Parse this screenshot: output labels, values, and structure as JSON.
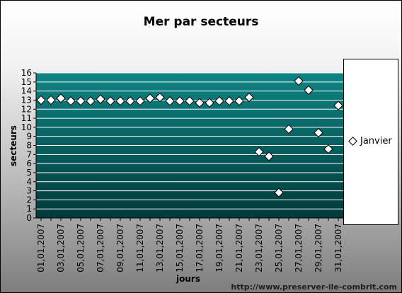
{
  "chart_data": {
    "type": "scatter",
    "title": "Mer par secteurs",
    "xlabel": "jours",
    "ylabel": "secteurs",
    "ylim": [
      0,
      16
    ],
    "y_ticks": [
      "0",
      "1",
      "2",
      "3",
      "4",
      "5",
      "6",
      "7",
      "8",
      "9",
      "10",
      "11",
      "12",
      "13",
      "14",
      "15",
      "16"
    ],
    "x_tick_labels": [
      "01,01,2007",
      "03,01,2007",
      "05,01,2007",
      "07,01,2007",
      "09,01,2007",
      "11,01,2007",
      "13,01,2007",
      "15,01,2007",
      "17,01,2007",
      "19,01,2007",
      "21,01,2007",
      "23,01,2007",
      "25,01,2007",
      "27,01,2007",
      "29,01,2007",
      "31,01,2007"
    ],
    "x": [
      "01,01,2007",
      "02,01,2007",
      "03,01,2007",
      "04,01,2007",
      "05,01,2007",
      "06,01,2007",
      "07,01,2007",
      "08,01,2007",
      "09,01,2007",
      "10,01,2007",
      "11,01,2007",
      "12,01,2007",
      "13,01,2007",
      "14,01,2007",
      "15,01,2007",
      "16,01,2007",
      "17,01,2007",
      "18,01,2007",
      "19,01,2007",
      "20,01,2007",
      "21,01,2007",
      "22,01,2007",
      "23,01,2007",
      "24,01,2007",
      "25,01,2007",
      "26,01,2007",
      "27,01,2007",
      "28,01,2007",
      "29,01,2007",
      "30,01,2007",
      "31,01,2007"
    ],
    "series": [
      {
        "name": "Janvier",
        "values": [
          13.0,
          13.0,
          13.2,
          12.9,
          12.9,
          12.9,
          13.1,
          12.9,
          12.9,
          12.9,
          12.9,
          13.2,
          13.3,
          12.9,
          12.9,
          12.9,
          12.7,
          12.7,
          12.9,
          12.9,
          12.9,
          13.3,
          7.3,
          6.8,
          2.8,
          9.8,
          15.1,
          14.1,
          9.4,
          7.6,
          12.4
        ]
      }
    ],
    "grid": true,
    "legend_position": "right",
    "colors": {
      "plot_background_top": "#0f8484",
      "plot_background_bottom": "#023a3a",
      "gridline": "#ffffff",
      "marker_fill": "#ffffff",
      "marker_stroke": "#000000"
    }
  },
  "watermark": "http://www.preserver-ile-combrit.com"
}
